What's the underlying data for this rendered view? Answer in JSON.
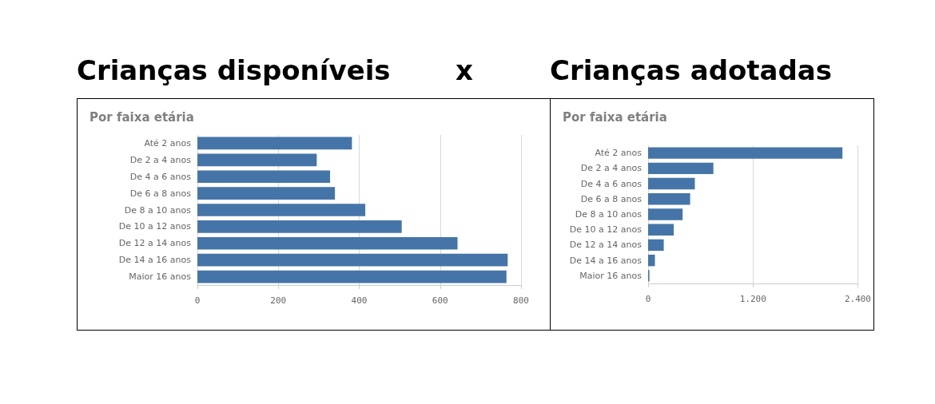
{
  "chart_data": [
    {
      "type": "bar",
      "orientation": "horizontal",
      "title": "Crianças disponíveis",
      "subtitle": "Por faixa etária",
      "annotations": [
        "x"
      ],
      "categories": [
        "Até 2 anos",
        "De 2 a 4 anos",
        "De 4 a 6 anos",
        "De 6 a 8 anos",
        "De 8 a 10 anos",
        "De 10 a 12 anos",
        "De 12 a 14 anos",
        "De 14 a 16 anos",
        "Maior 16 anos"
      ],
      "values": [
        382,
        295,
        328,
        340,
        415,
        505,
        643,
        767,
        764
      ],
      "color": "#4575a8",
      "xlim": [
        0,
        800
      ],
      "xticks": [
        0,
        200,
        400,
        600,
        800
      ],
      "grid": "x"
    },
    {
      "type": "bar",
      "orientation": "horizontal",
      "title": "Crianças adotadas",
      "subtitle": "Por faixa etária",
      "categories": [
        "Até 2 anos",
        "De 2 a 4 anos",
        "De 4 a 6 anos",
        "De 6 a 8 anos",
        "De 8 a 10 anos",
        "De 10 a 12 anos",
        "De 12 a 14 anos",
        "De 14 a 16 anos",
        "Maior 16 anos"
      ],
      "values": [
        2224,
        747,
        535,
        481,
        395,
        293,
        179,
        78,
        15
      ],
      "color": "#4575a8",
      "xlim": [
        0,
        2400
      ],
      "xticks": [
        0,
        {
          "value": 1200,
          "label": "1.200"
        },
        {
          "value": 2400,
          "label": "2.400"
        }
      ],
      "grid": "x"
    }
  ]
}
